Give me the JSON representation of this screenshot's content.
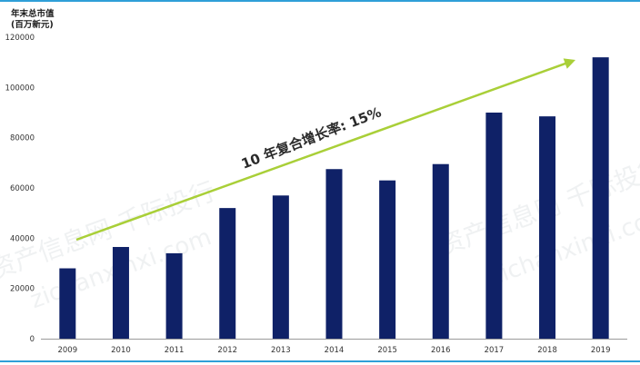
{
  "ylabel_line1": "年末总市值",
  "ylabel_line2": "(百万新元)",
  "annotation": "10 年复合增长率: 15%",
  "watermark": {
    "cn": "资产信息网 千际投行",
    "en": "zichanxinxi.com"
  },
  "colors": {
    "bar": "#0f2167",
    "arrow": "#a9cf38",
    "edge": "#2f9fd8",
    "axis": "#9a9a9a"
  },
  "chart_data": {
    "type": "bar",
    "categories": [
      "2009",
      "2010",
      "2011",
      "2012",
      "2013",
      "2014",
      "2015",
      "2016",
      "2017",
      "2018",
      "2019"
    ],
    "values": [
      28000,
      36500,
      34000,
      52000,
      57000,
      67500,
      63000,
      69500,
      90000,
      88500,
      112000
    ],
    "yticks": [
      0,
      20000,
      40000,
      60000,
      80000,
      100000,
      120000
    ],
    "ylim": [
      0,
      120000
    ],
    "ylabel": "年末总市值 (百万新元)",
    "xlabel": "",
    "title": "",
    "grid": false,
    "legend": "none"
  }
}
